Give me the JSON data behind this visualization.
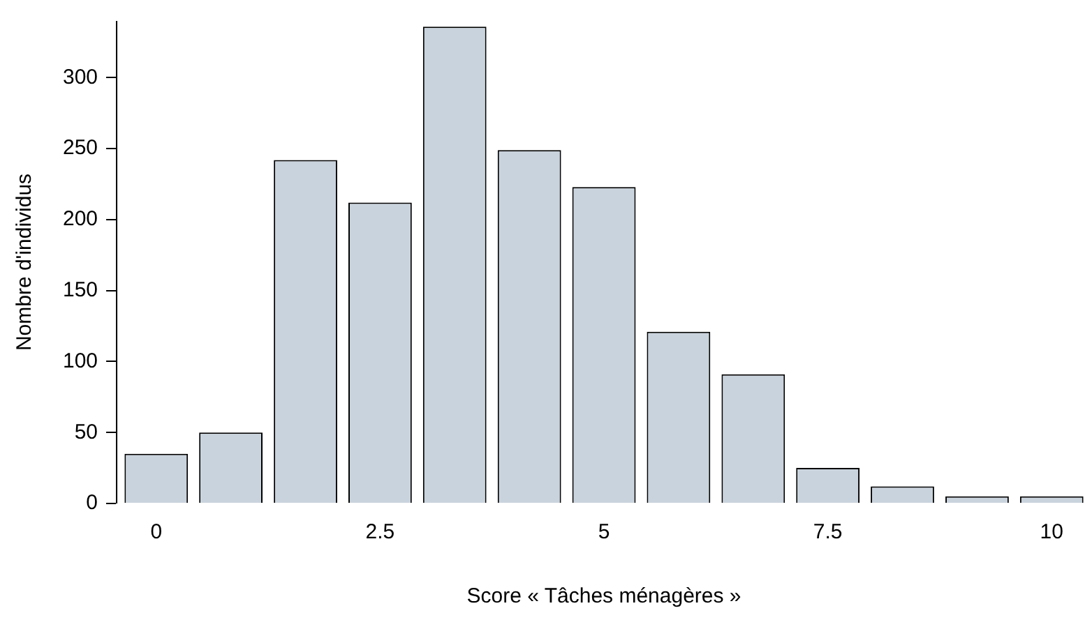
{
  "chart_data": {
    "type": "bar",
    "xlabel": "Score « Tâches ménagères »",
    "ylabel": "Nombre d'individus",
    "x": [
      0,
      0.833,
      1.667,
      2.5,
      3.333,
      4.167,
      5,
      5.833,
      6.667,
      7.5,
      8.333,
      9.167,
      10
    ],
    "values": [
      35,
      50,
      242,
      212,
      336,
      249,
      223,
      121,
      91,
      25,
      12,
      5,
      5
    ],
    "color": "#c9d3dd",
    "xlim": [
      -0.45,
      10.45
    ],
    "xticks": [
      0,
      2.5,
      5,
      7.5,
      10
    ],
    "ylim": [
      0,
      340
    ],
    "yticks": [
      0,
      50,
      100,
      150,
      200,
      250,
      300
    ],
    "grid": false,
    "legend": false
  }
}
